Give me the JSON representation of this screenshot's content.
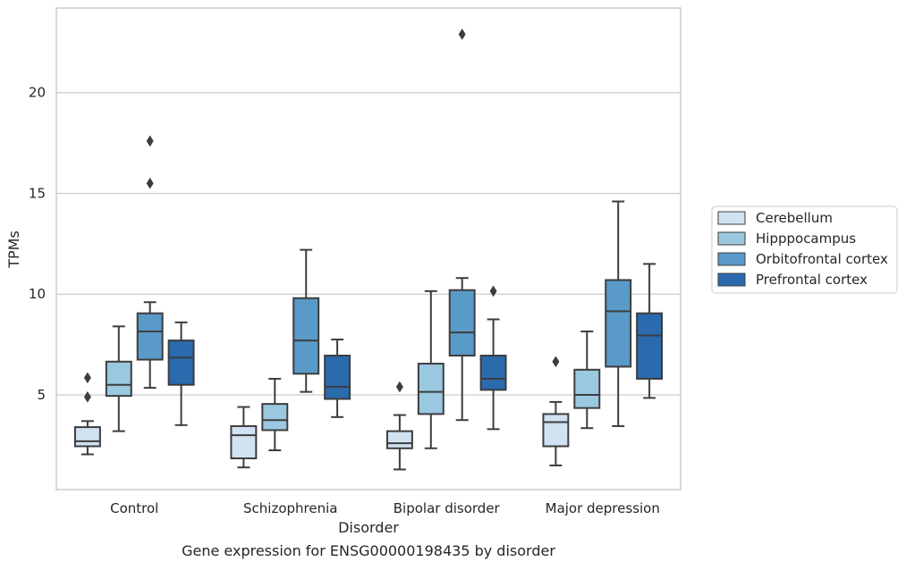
{
  "chart_data": {
    "type": "box",
    "caption": "Gene expression for ENSG00000198435 by disorder",
    "xlabel": "Disorder",
    "ylabel": "TPMs",
    "ylim": [
      0.3,
      24.2
    ],
    "yticks": [
      5,
      10,
      15,
      20
    ],
    "grid": "horizontal",
    "legend_position": "right",
    "categories": [
      "Control",
      "Schizophrenia",
      "Bipolar disorder",
      "Major depression"
    ],
    "series": [
      {
        "name": "Cerebellum",
        "color": "#d1e2f3",
        "boxes": [
          {
            "whisker_low": 2.05,
            "q1": 2.45,
            "median": 2.7,
            "q3": 3.4,
            "whisker_high": 3.7,
            "outliers": [
              4.9,
              5.85
            ]
          },
          {
            "whisker_low": 1.4,
            "q1": 1.85,
            "median": 3.0,
            "q3": 3.45,
            "whisker_high": 4.4,
            "outliers": []
          },
          {
            "whisker_low": 1.3,
            "q1": 2.35,
            "median": 2.6,
            "q3": 3.2,
            "whisker_high": 4.0,
            "outliers": [
              5.4
            ]
          },
          {
            "whisker_low": 1.5,
            "q1": 2.45,
            "median": 3.65,
            "q3": 4.05,
            "whisker_high": 4.65,
            "outliers": [
              6.65
            ]
          }
        ]
      },
      {
        "name": "Hipppocampus",
        "color": "#9ac8e0",
        "boxes": [
          {
            "whisker_low": 3.2,
            "q1": 4.95,
            "median": 5.5,
            "q3": 6.65,
            "whisker_high": 8.4,
            "outliers": []
          },
          {
            "whisker_low": 2.25,
            "q1": 3.25,
            "median": 3.75,
            "q3": 4.55,
            "whisker_high": 5.8,
            "outliers": []
          },
          {
            "whisker_low": 2.35,
            "q1": 4.05,
            "median": 5.15,
            "q3": 6.55,
            "whisker_high": 10.15,
            "outliers": []
          },
          {
            "whisker_low": 3.35,
            "q1": 4.35,
            "median": 5.0,
            "q3": 6.25,
            "whisker_high": 8.15,
            "outliers": []
          }
        ]
      },
      {
        "name": "Orbitofrontal cortex",
        "color": "#5a9ac8",
        "boxes": [
          {
            "whisker_low": 5.35,
            "q1": 6.75,
            "median": 8.15,
            "q3": 9.05,
            "whisker_high": 9.6,
            "outliers": [
              15.5,
              17.6
            ]
          },
          {
            "whisker_low": 5.15,
            "q1": 6.05,
            "median": 7.7,
            "q3": 9.8,
            "whisker_high": 12.2,
            "outliers": []
          },
          {
            "whisker_low": 3.75,
            "q1": 6.95,
            "median": 8.1,
            "q3": 10.2,
            "whisker_high": 10.8,
            "outliers": [
              22.9
            ]
          },
          {
            "whisker_low": 3.45,
            "q1": 6.4,
            "median": 9.15,
            "q3": 10.7,
            "whisker_high": 14.6,
            "outliers": []
          }
        ]
      },
      {
        "name": "Prefrontal cortex",
        "color": "#2a6aad",
        "boxes": [
          {
            "whisker_low": 3.5,
            "q1": 5.5,
            "median": 6.85,
            "q3": 7.7,
            "whisker_high": 8.6,
            "outliers": []
          },
          {
            "whisker_low": 3.9,
            "q1": 4.8,
            "median": 5.4,
            "q3": 6.95,
            "whisker_high": 7.75,
            "outliers": []
          },
          {
            "whisker_low": 3.3,
            "q1": 5.25,
            "median": 5.8,
            "q3": 6.95,
            "whisker_high": 8.75,
            "outliers": [
              10.15
            ]
          },
          {
            "whisker_low": 4.85,
            "q1": 5.8,
            "median": 7.95,
            "q3": 9.05,
            "whisker_high": 11.5,
            "outliers": []
          }
        ]
      }
    ]
  }
}
